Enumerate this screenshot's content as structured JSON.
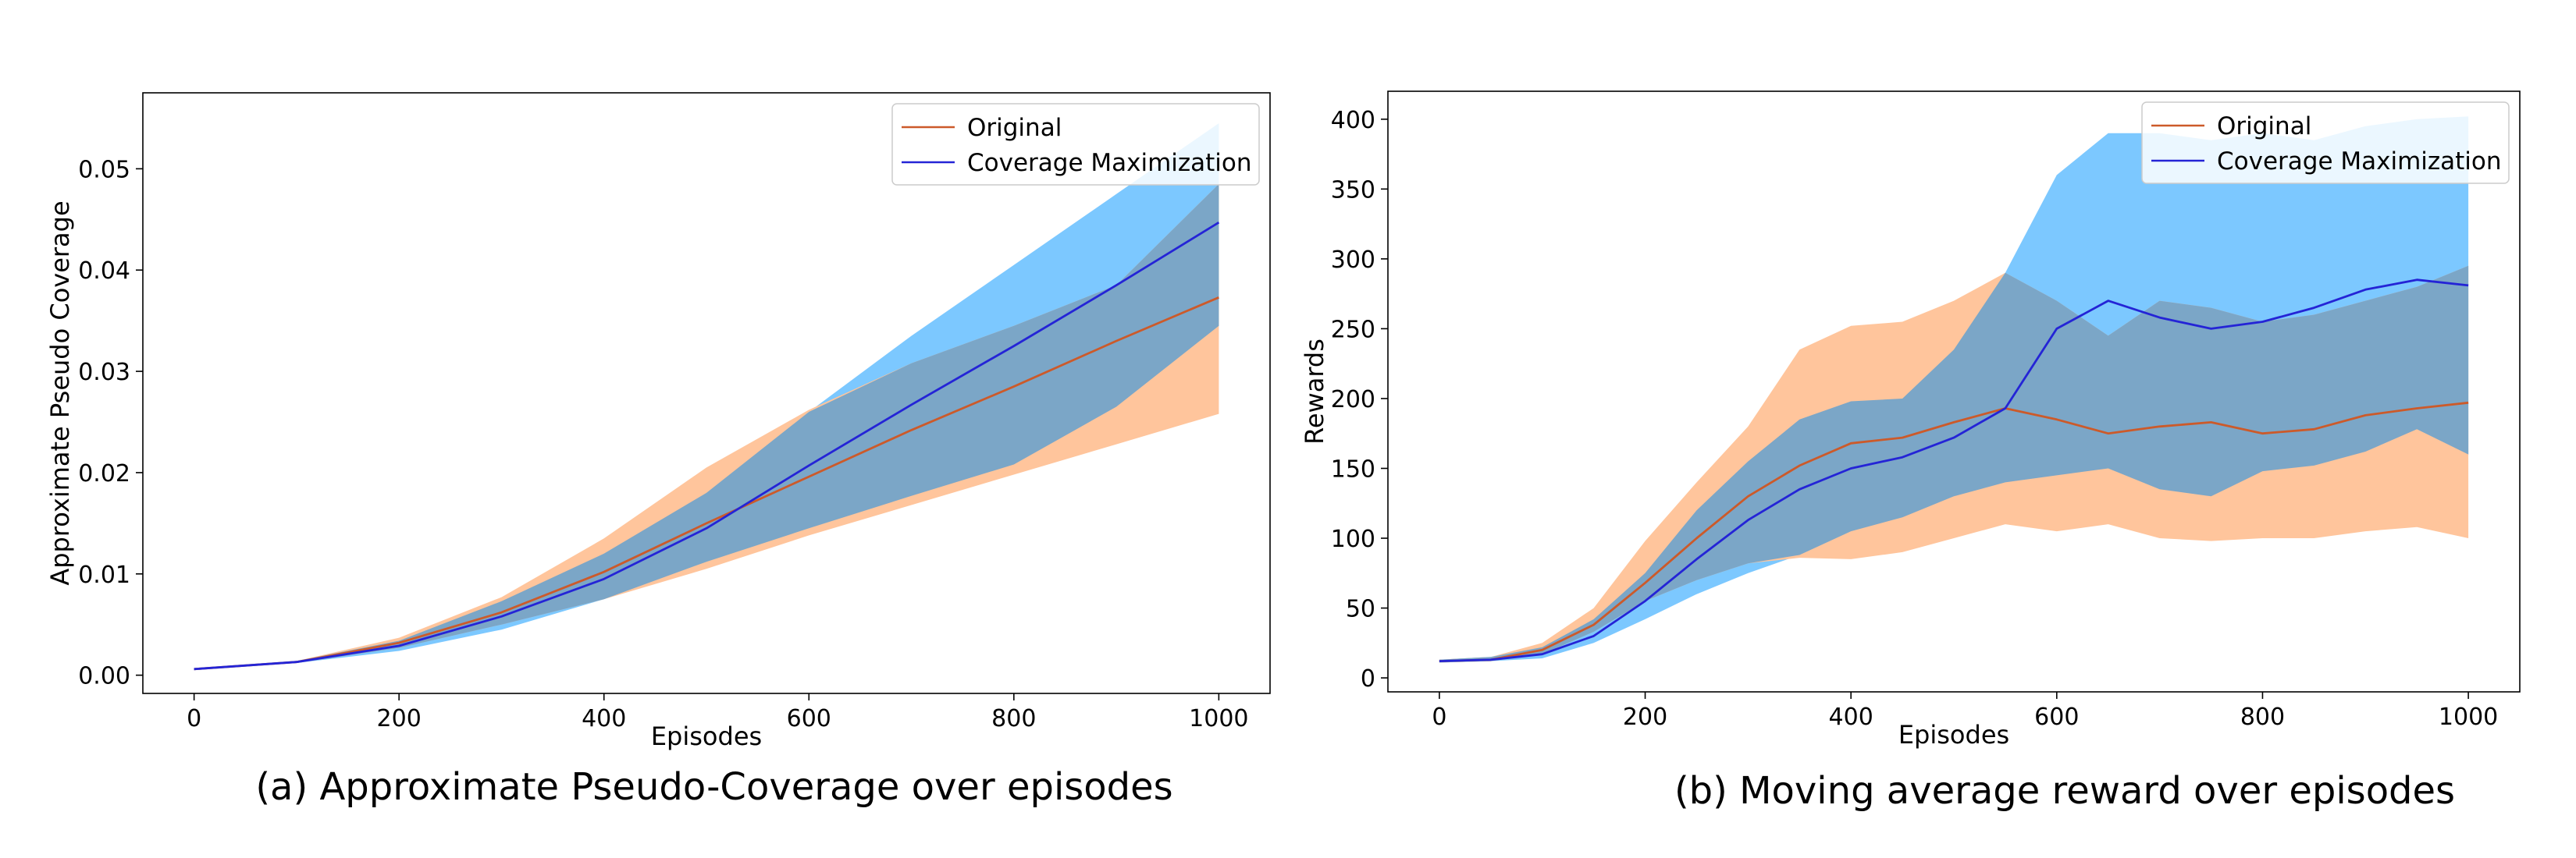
{
  "colors": {
    "original_line": "#cc5a2a",
    "original_band": "#ffc59c",
    "coverage_line": "#2424d6",
    "coverage_band": "#7cc8ff",
    "overlap_band": "#7ba6c7"
  },
  "chart_data": [
    {
      "type": "line",
      "title": "",
      "caption": "(a) Approximate Pseudo-Coverage over episodes",
      "xlabel": "Episodes",
      "ylabel": "Approximate Pseudo Coverage",
      "xlim": [
        -50,
        1050
      ],
      "ylim": [
        -0.0018,
        0.0575
      ],
      "xticks": [
        0,
        200,
        400,
        600,
        800,
        1000
      ],
      "xtick_labels": [
        "0",
        "200",
        "400",
        "600",
        "800",
        "1000"
      ],
      "yticks": [
        0.0,
        0.01,
        0.02,
        0.03,
        0.04,
        0.05
      ],
      "ytick_labels": [
        "0.00",
        "0.01",
        "0.02",
        "0.03",
        "0.04",
        "0.05"
      ],
      "legend": {
        "position": "top-right",
        "entries": [
          "Original",
          "Coverage Maximization"
        ]
      },
      "x": [
        0,
        100,
        200,
        300,
        400,
        500,
        600,
        700,
        800,
        900,
        1000
      ],
      "series": [
        {
          "name": "Original",
          "values": [
            0.0006,
            0.0013,
            0.0032,
            0.0062,
            0.0102,
            0.015,
            0.0196,
            0.0242,
            0.0285,
            0.033,
            0.0373
          ],
          "lower": [
            0.0006,
            0.0012,
            0.0027,
            0.005,
            0.0075,
            0.0105,
            0.0138,
            0.0168,
            0.0198,
            0.0228,
            0.0258
          ],
          "upper": [
            0.0006,
            0.0014,
            0.0037,
            0.0077,
            0.0135,
            0.0205,
            0.0262,
            0.0308,
            0.0345,
            0.0385,
            0.0485
          ]
        },
        {
          "name": "Coverage Maximization",
          "values": [
            0.0006,
            0.0013,
            0.0029,
            0.0058,
            0.0095,
            0.0145,
            0.0207,
            0.0267,
            0.0325,
            0.0385,
            0.0447
          ],
          "lower": [
            0.0006,
            0.0012,
            0.0024,
            0.0045,
            0.0075,
            0.0112,
            0.0145,
            0.0177,
            0.0208,
            0.0265,
            0.0345
          ],
          "upper": [
            0.0006,
            0.0014,
            0.0034,
            0.0073,
            0.012,
            0.018,
            0.026,
            0.0335,
            0.0405,
            0.0475,
            0.0545
          ]
        }
      ]
    },
    {
      "type": "line",
      "title": "",
      "caption": "(b) Moving average reward over episodes",
      "xlabel": "Episodes",
      "ylabel": "Rewards",
      "xlim": [
        -50,
        1050
      ],
      "ylim": [
        -10,
        420
      ],
      "xticks": [
        0,
        200,
        400,
        600,
        800,
        1000
      ],
      "xtick_labels": [
        "0",
        "200",
        "400",
        "600",
        "800",
        "1000"
      ],
      "yticks": [
        0,
        50,
        100,
        150,
        200,
        250,
        300,
        350,
        400
      ],
      "ytick_labels": [
        "0",
        "50",
        "100",
        "150",
        "200",
        "250",
        "300",
        "350",
        "400"
      ],
      "legend": {
        "position": "top-right",
        "entries": [
          "Original",
          "Coverage Maximization"
        ]
      },
      "x": [
        0,
        50,
        100,
        150,
        200,
        250,
        300,
        350,
        400,
        450,
        500,
        550,
        600,
        650,
        700,
        750,
        800,
        850,
        900,
        950,
        1000
      ],
      "series": [
        {
          "name": "Original",
          "values": [
            12,
            13,
            20,
            38,
            68,
            100,
            130,
            152,
            168,
            172,
            183,
            193,
            185,
            175,
            180,
            183,
            175,
            178,
            188,
            193,
            197
          ],
          "lower": [
            11,
            12,
            17,
            33,
            55,
            70,
            82,
            86,
            85,
            90,
            100,
            110,
            105,
            110,
            100,
            98,
            100,
            100,
            105,
            108,
            100
          ],
          "upper": [
            13,
            15,
            25,
            50,
            98,
            140,
            180,
            235,
            252,
            255,
            270,
            290,
            270,
            245,
            270,
            265,
            255,
            260,
            270,
            280,
            295
          ]
        },
        {
          "name": "Coverage Maximization",
          "values": [
            12,
            13,
            17,
            30,
            55,
            85,
            113,
            135,
            150,
            158,
            172,
            193,
            250,
            270,
            258,
            250,
            255,
            265,
            278,
            285,
            281
          ],
          "lower": [
            11,
            12,
            14,
            25,
            42,
            60,
            75,
            88,
            105,
            115,
            130,
            140,
            145,
            150,
            135,
            130,
            148,
            152,
            162,
            178,
            160
          ],
          "upper": [
            13,
            15,
            22,
            42,
            75,
            120,
            155,
            185,
            198,
            200,
            235,
            290,
            360,
            390,
            390,
            385,
            390,
            385,
            395,
            400,
            402
          ]
        }
      ]
    }
  ]
}
